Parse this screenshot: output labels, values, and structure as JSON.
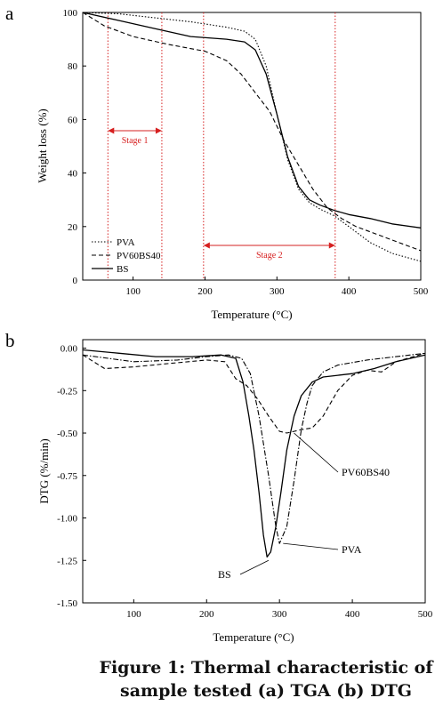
{
  "chart_data": [
    {
      "panel_label": "a",
      "type": "line",
      "xlabel": "Temperature (°C)",
      "ylabel": "Weight loss (%)",
      "xlim": [
        30,
        500
      ],
      "ylim": [
        0,
        100
      ],
      "xticks": [
        100,
        200,
        300,
        400,
        500
      ],
      "yticks": [
        0,
        20,
        40,
        60,
        80,
        100
      ],
      "legend_position": "bottom-left",
      "series": [
        {
          "name": "PVA",
          "style": "dotted",
          "x": [
            30,
            80,
            130,
            180,
            230,
            255,
            270,
            285,
            300,
            315,
            330,
            345,
            360,
            380,
            400,
            430,
            460,
            500
          ],
          "y": [
            100,
            99.5,
            98,
            96.5,
            94.5,
            93,
            90,
            80,
            62,
            45,
            34,
            29,
            26.5,
            24,
            20,
            14,
            10,
            7
          ]
        },
        {
          "name": "PV60BS40",
          "style": "dashed",
          "x": [
            30,
            60,
            100,
            150,
            200,
            230,
            250,
            270,
            290,
            310,
            330,
            350,
            370,
            390,
            410,
            440,
            470,
            500
          ],
          "y": [
            100,
            95,
            91,
            88,
            85.5,
            82,
            77,
            70,
            63,
            52,
            43,
            34,
            27,
            23,
            20,
            17,
            14,
            11
          ]
        },
        {
          "name": "BS",
          "style": "solid",
          "x": [
            30,
            80,
            130,
            180,
            230,
            255,
            270,
            285,
            300,
            315,
            330,
            345,
            360,
            380,
            400,
            430,
            460,
            500
          ],
          "y": [
            100,
            97,
            94,
            91,
            90,
            89,
            86,
            77,
            62,
            46,
            35,
            30,
            28,
            26,
            24.5,
            23,
            21,
            19.5
          ]
        }
      ],
      "annotations": [
        {
          "label": "Stage 1",
          "x_range": [
            65,
            140
          ]
        },
        {
          "label": "Stage 2",
          "x_range": [
            198,
            381
          ]
        }
      ]
    },
    {
      "panel_label": "b",
      "type": "line",
      "xlabel": "Temperature (°C)",
      "ylabel": "DTG (%/min)",
      "xlim": [
        30,
        500
      ],
      "ylim": [
        -1.5,
        0.05
      ],
      "xticks": [
        100,
        200,
        300,
        400,
        500
      ],
      "yticks": [
        0.0,
        -0.25,
        -0.5,
        -0.75,
        -1.0,
        -1.25,
        -1.5
      ],
      "series": [
        {
          "name": "PVA",
          "style": "dash-dot",
          "x": [
            30,
            100,
            160,
            200,
            230,
            248,
            260,
            272,
            285,
            295,
            300,
            310,
            320,
            330,
            338,
            345,
            360,
            380,
            420,
            460,
            500
          ],
          "y": [
            -0.04,
            -0.08,
            -0.07,
            -0.05,
            -0.04,
            -0.06,
            -0.15,
            -0.4,
            -0.75,
            -1.05,
            -1.15,
            -1.05,
            -0.78,
            -0.48,
            -0.32,
            -0.22,
            -0.14,
            -0.1,
            -0.07,
            -0.05,
            -0.03
          ]
        },
        {
          "name": "PV60BS40",
          "style": "dashed",
          "x": [
            30,
            60,
            100,
            150,
            200,
            225,
            240,
            255,
            270,
            285,
            300,
            310,
            320,
            330,
            345,
            360,
            380,
            400,
            420,
            440,
            460,
            500
          ],
          "y": [
            -0.04,
            -0.12,
            -0.11,
            -0.09,
            -0.07,
            -0.08,
            -0.18,
            -0.22,
            -0.3,
            -0.4,
            -0.49,
            -0.5,
            -0.49,
            -0.48,
            -0.47,
            -0.4,
            -0.25,
            -0.16,
            -0.13,
            -0.14,
            -0.08,
            -0.03
          ]
        },
        {
          "name": "BS",
          "style": "solid",
          "x": [
            30,
            80,
            130,
            180,
            220,
            240,
            250,
            258,
            265,
            272,
            278,
            283,
            288,
            295,
            302,
            310,
            320,
            330,
            345,
            360,
            380,
            400,
            430,
            460,
            500
          ],
          "y": [
            -0.01,
            -0.03,
            -0.05,
            -0.05,
            -0.04,
            -0.06,
            -0.2,
            -0.4,
            -0.6,
            -0.85,
            -1.1,
            -1.23,
            -1.2,
            -1.05,
            -0.85,
            -0.6,
            -0.4,
            -0.28,
            -0.2,
            -0.17,
            -0.16,
            -0.15,
            -0.12,
            -0.08,
            -0.04
          ]
        }
      ],
      "annotations": [
        {
          "label": "PV60BS40",
          "x": 320,
          "y": -0.5
        },
        {
          "label": "PVA",
          "x": 305,
          "y": -1.15
        },
        {
          "label": "BS",
          "x": 285,
          "y": -1.25
        }
      ]
    }
  ],
  "caption": {
    "line1": "Figure 1: Thermal characteristic of",
    "line2": "sample tested (a) TGA (b) DTG"
  }
}
